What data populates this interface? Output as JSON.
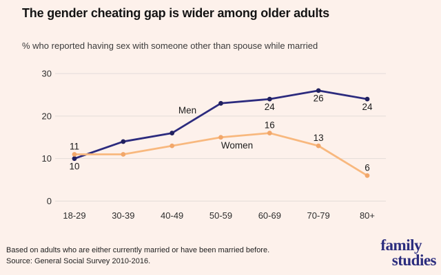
{
  "header": {
    "title": "The gender cheating gap is wider among older adults",
    "subtitle": "% who reported having sex with someone other than spouse while married"
  },
  "chart_data": {
    "type": "line",
    "categories": [
      "18-29",
      "30-39",
      "40-49",
      "50-59",
      "60-69",
      "70-79",
      "80+"
    ],
    "series": [
      {
        "name": "Men",
        "color": "#2c2b7e",
        "marker_color": "#21215f",
        "values": [
          10,
          14,
          16,
          23,
          24,
          26,
          24
        ],
        "point_labels": [
          "10",
          "",
          "",
          "",
          "24",
          "26",
          "24"
        ],
        "label_side": "below"
      },
      {
        "name": "Women",
        "color": "#f8b87e",
        "marker_color": "#f2a76a",
        "values": [
          11,
          11,
          13,
          15,
          16,
          13,
          6
        ],
        "point_labels": [
          "11",
          "",
          "",
          "",
          "16",
          "13",
          "6"
        ],
        "label_side": "above"
      }
    ],
    "ylim": [
      0,
      30
    ],
    "yticks": [
      0,
      10,
      20,
      30
    ],
    "grid": "horizontal",
    "legend": "inline-labels"
  },
  "footer": {
    "note": "Based on adults who are either currently married or have been married before.",
    "source": "Source: General Social Survey 2010-2016."
  },
  "logo": {
    "line1": "family",
    "line2": "studies",
    "color": "#2b2d7e"
  },
  "colors": {
    "background": "#fdf1eb",
    "gridline": "#e3dcd8",
    "tick_label": "#2d2d2d",
    "data_label": "#1c1c1c"
  }
}
